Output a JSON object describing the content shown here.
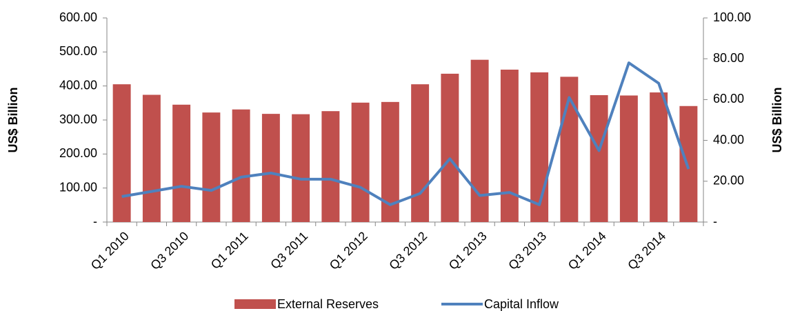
{
  "chart_data": {
    "type": "bar-line",
    "categories": [
      "Q1 2010",
      null,
      "Q3 2010",
      null,
      "Q1 2011",
      null,
      "Q3 2011",
      null,
      "Q1 2012",
      null,
      "Q3 2012",
      null,
      "Q1 2013",
      null,
      "Q3 2013",
      null,
      "Q1 2014",
      null,
      "Q3 2014",
      null
    ],
    "y_label": "US$ Billion",
    "y2_label": "US$ Billion",
    "series": [
      {
        "name": "External Reserves",
        "color": "#c0504d",
        "kind": "bar",
        "values": [
          405,
          374,
          345,
          322,
          331,
          318,
          317,
          326,
          351,
          353,
          405,
          436,
          477,
          448,
          440,
          427,
          373,
          372,
          381,
          341
        ]
      },
      {
        "name": "Capital Inflow",
        "color": "#4f81bd",
        "kind": "line",
        "axis": "y2",
        "values": [
          12.5,
          15,
          17.5,
          15.5,
          22,
          24,
          21,
          21,
          17,
          8.5,
          14,
          31,
          13,
          14.5,
          8.5,
          61,
          35,
          78,
          68,
          26
        ]
      }
    ],
    "ylim": [
      0,
      600
    ],
    "yticks": [
      {
        "value": 0,
        "label": "-"
      },
      {
        "value": 100,
        "label": "100.00"
      },
      {
        "value": 200,
        "label": "200.00"
      },
      {
        "value": 300,
        "label": "300.00"
      },
      {
        "value": 400,
        "label": "400.00"
      },
      {
        "value": 500,
        "label": "500.00"
      },
      {
        "value": 600,
        "label": "600.00"
      }
    ],
    "y2lim": [
      0,
      100
    ],
    "y2ticks": [
      {
        "value": 0,
        "label": "-"
      },
      {
        "value": 20,
        "label": "20.00"
      },
      {
        "value": 40,
        "label": "40.00"
      },
      {
        "value": 60,
        "label": "60.00"
      },
      {
        "value": 80,
        "label": "80.00"
      },
      {
        "value": 100,
        "label": "100.00"
      }
    ],
    "legend": "bottom"
  }
}
